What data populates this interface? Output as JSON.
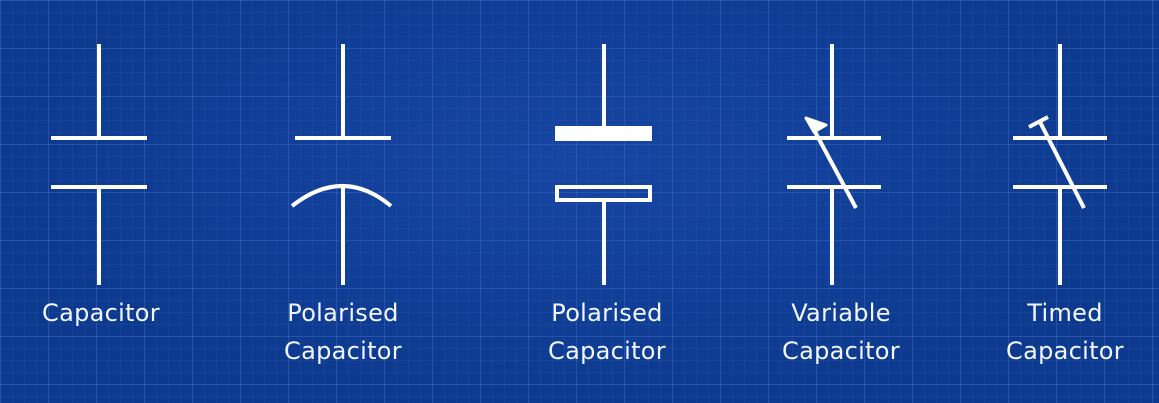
{
  "colors": {
    "background": "#0d3a8e",
    "stroke": "#ffffff"
  },
  "symbols": [
    {
      "kind": "capacitor",
      "label_lines": [
        "Capacitor"
      ]
    },
    {
      "kind": "polarised-curved",
      "label_lines": [
        "Polarised",
        "Capacitor"
      ]
    },
    {
      "kind": "polarised-box",
      "label_lines": [
        "Polarised",
        "Capacitor"
      ]
    },
    {
      "kind": "variable",
      "label_lines": [
        "Variable",
        "Capacitor"
      ]
    },
    {
      "kind": "timed",
      "label_lines": [
        "Timed",
        "Capacitor"
      ]
    }
  ]
}
